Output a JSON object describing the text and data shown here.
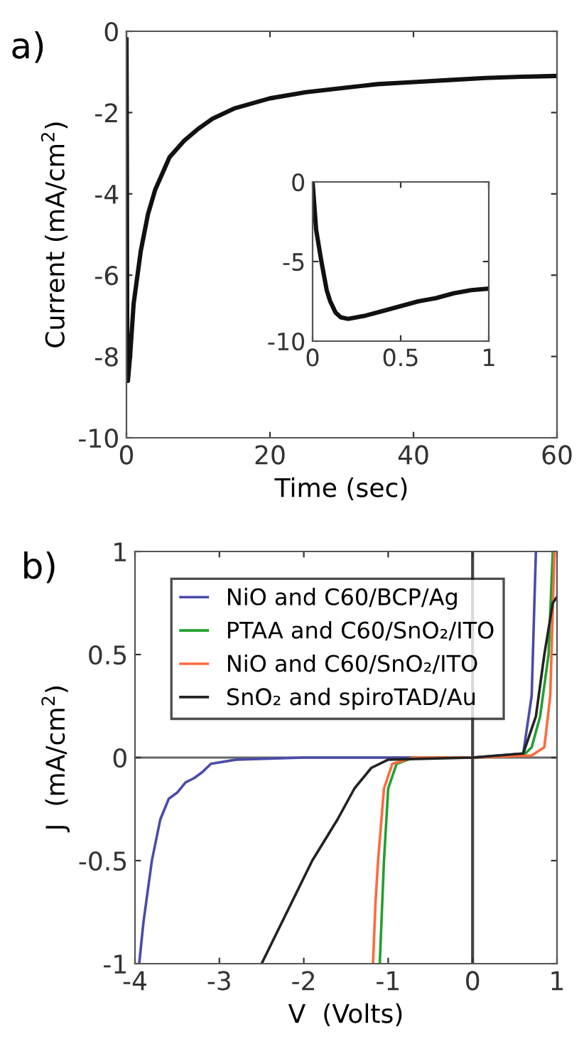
{
  "chart_data": [
    {
      "type": "line",
      "title": "a)",
      "xlabel": "Time (sec)",
      "ylabel": "Current (mA/cm$^{2}$)",
      "xlim": [
        0,
        60
      ],
      "ylim": [
        -10,
        0
      ],
      "xticks": [
        0,
        20,
        40,
        60
      ],
      "yticks": [
        -10,
        -8,
        -6,
        -4,
        -2,
        0
      ],
      "series": [
        {
          "color": "#111111",
          "x": [
            0,
            0.05,
            0.1,
            0.2,
            0.5,
            1,
            2,
            3,
            4,
            5,
            6,
            8,
            10,
            12,
            15,
            20,
            25,
            30,
            35,
            40,
            45,
            50,
            55,
            60
          ],
          "values": [
            -0.2,
            -3,
            -7.5,
            -8.6,
            -8.0,
            -6.7,
            -5.4,
            -4.5,
            -3.9,
            -3.5,
            -3.1,
            -2.7,
            -2.4,
            -2.15,
            -1.9,
            -1.65,
            -1.5,
            -1.4,
            -1.3,
            -1.25,
            -1.2,
            -1.15,
            -1.12,
            -1.1
          ]
        }
      ]
    },
    {
      "type": "line",
      "xlim": [
        0,
        1
      ],
      "ylim": [
        -10,
        0
      ],
      "xticks": [
        0,
        0.5,
        1
      ],
      "yticks": [
        -10,
        -5,
        0
      ],
      "series": [
        {
          "color": "#111111",
          "x": [
            0,
            0.02,
            0.05,
            0.08,
            0.1,
            0.13,
            0.16,
            0.2,
            0.25,
            0.3,
            0.4,
            0.5,
            0.6,
            0.7,
            0.8,
            0.9,
            1
          ],
          "values": [
            0,
            -3,
            -5,
            -6.8,
            -7.5,
            -8.2,
            -8.5,
            -8.6,
            -8.5,
            -8.4,
            -8.1,
            -7.8,
            -7.5,
            -7.3,
            -7.0,
            -6.8,
            -6.7
          ]
        }
      ]
    },
    {
      "type": "line",
      "title": "b)",
      "xlabel": "V  (Volts)",
      "ylabel": "J  (mA/cm$^{2}$)",
      "xlim": [
        -4,
        1
      ],
      "ylim": [
        -1,
        1
      ],
      "xticks": [
        -4,
        -3,
        -2,
        -1,
        0,
        1
      ],
      "yticks": [
        -1,
        -0.5,
        0,
        0.5,
        1
      ],
      "legend": "top",
      "ref_lines": [
        {
          "axis": "x",
          "value": 0,
          "color": "#444444"
        },
        {
          "axis": "y",
          "value": 0,
          "color": "#666666"
        }
      ],
      "series": [
        {
          "name": "NiO and C60/BCP/Ag",
          "color": "#4b4ba8",
          "x": [
            -3.95,
            -3.9,
            -3.8,
            -3.7,
            -3.6,
            -3.5,
            -3.4,
            -3.3,
            -3.2,
            -3.1,
            -2.8,
            -2.0,
            0,
            0.6,
            0.7,
            0.75
          ],
          "values": [
            -1,
            -0.8,
            -0.5,
            -0.3,
            -0.2,
            -0.17,
            -0.12,
            -0.1,
            -0.07,
            -0.03,
            -0.01,
            0,
            0,
            0.02,
            0.3,
            1
          ]
        },
        {
          "name": "PTAA and C60/SnO₂/ITO",
          "color": "#22a030",
          "x": [
            -1.1,
            -1.07,
            -1.05,
            -1.0,
            -0.9,
            -0.7,
            0,
            0.6,
            0.7,
            0.8,
            0.9,
            0.95
          ],
          "values": [
            -1,
            -0.7,
            -0.5,
            -0.15,
            -0.03,
            0,
            0,
            0.01,
            0.05,
            0.2,
            0.5,
            1
          ]
        },
        {
          "name": "NiO and C60/SnO₂/ITO",
          "color": "#ff6a3d",
          "x": [
            -1.18,
            -1.15,
            -1.12,
            -1.05,
            -0.95,
            -0.7,
            0,
            0.7,
            0.85,
            0.92,
            0.97
          ],
          "values": [
            -1,
            -0.7,
            -0.5,
            -0.15,
            -0.03,
            0,
            0,
            0.01,
            0.05,
            0.3,
            1
          ]
        },
        {
          "name": "SnO₂ and spiroTAD/Au",
          "color": "#222222",
          "x": [
            -2.5,
            -2.2,
            -1.9,
            -1.6,
            -1.4,
            -1.2,
            -1.0,
            0,
            0.6,
            0.75,
            0.85,
            0.95,
            1
          ],
          "values": [
            -1,
            -0.75,
            -0.5,
            -0.3,
            -0.15,
            -0.05,
            -0.01,
            0,
            0.02,
            0.2,
            0.5,
            0.75,
            0.78
          ]
        }
      ]
    }
  ]
}
